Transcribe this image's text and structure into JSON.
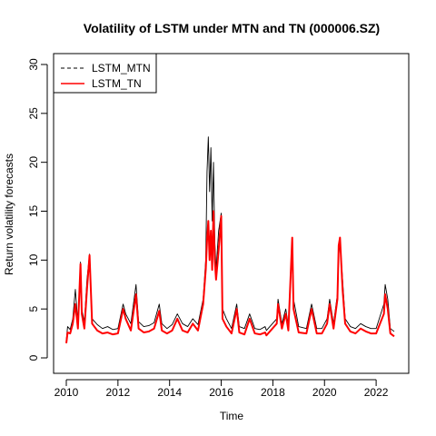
{
  "chart_data": {
    "type": "line",
    "title": "Volatility of LSTM under MTN and TN (000006.SZ)",
    "xlabel": "Time",
    "ylabel": "Return volatility forecasts",
    "xlim": [
      2010,
      2022.7
    ],
    "ylim": [
      0,
      30
    ],
    "x_ticks": [
      "2010",
      "2012",
      "2014",
      "2016",
      "2018",
      "2020",
      "2022"
    ],
    "y_ticks": [
      "0",
      "5",
      "10",
      "15",
      "20",
      "25",
      "30"
    ],
    "legend": {
      "position": "top-left"
    },
    "series": [
      {
        "name": "LSTM_MTN",
        "color": "#000000",
        "line_style": "dashed in legend, solid in plot",
        "values": [
          [
            2010.0,
            1.8
          ],
          [
            2010.05,
            3.2
          ],
          [
            2010.15,
            2.9
          ],
          [
            2010.25,
            4.0
          ],
          [
            2010.35,
            7.0
          ],
          [
            2010.45,
            3.5
          ],
          [
            2010.55,
            9.8
          ],
          [
            2010.6,
            5.0
          ],
          [
            2010.7,
            3.6
          ],
          [
            2010.8,
            8.0
          ],
          [
            2010.9,
            10.6
          ],
          [
            2011.0,
            4.0
          ],
          [
            2011.2,
            3.4
          ],
          [
            2011.4,
            3.0
          ],
          [
            2011.6,
            3.2
          ],
          [
            2011.8,
            2.9
          ],
          [
            2012.0,
            3.0
          ],
          [
            2012.2,
            5.5
          ],
          [
            2012.3,
            4.5
          ],
          [
            2012.5,
            3.5
          ],
          [
            2012.7,
            7.5
          ],
          [
            2012.8,
            3.7
          ],
          [
            2013.0,
            3.2
          ],
          [
            2013.2,
            3.3
          ],
          [
            2013.4,
            3.6
          ],
          [
            2013.6,
            5.5
          ],
          [
            2013.7,
            3.5
          ],
          [
            2013.9,
            3.0
          ],
          [
            2014.1,
            3.4
          ],
          [
            2014.3,
            4.5
          ],
          [
            2014.5,
            3.5
          ],
          [
            2014.7,
            3.2
          ],
          [
            2014.9,
            4.0
          ],
          [
            2015.1,
            3.4
          ],
          [
            2015.3,
            6.0
          ],
          [
            2015.4,
            10.0
          ],
          [
            2015.45,
            19.0
          ],
          [
            2015.5,
            22.6
          ],
          [
            2015.55,
            17.0
          ],
          [
            2015.6,
            21.5
          ],
          [
            2015.65,
            14.0
          ],
          [
            2015.7,
            20.0
          ],
          [
            2015.75,
            12.0
          ],
          [
            2015.8,
            9.0
          ],
          [
            2015.9,
            13.0
          ],
          [
            2016.0,
            14.8
          ],
          [
            2016.05,
            5.0
          ],
          [
            2016.2,
            4.0
          ],
          [
            2016.4,
            3.0
          ],
          [
            2016.6,
            5.5
          ],
          [
            2016.7,
            3.2
          ],
          [
            2016.9,
            3.0
          ],
          [
            2017.1,
            4.5
          ],
          [
            2017.3,
            3.0
          ],
          [
            2017.5,
            2.9
          ],
          [
            2017.7,
            3.2
          ],
          [
            2017.75,
            2.8
          ],
          [
            2018.15,
            4.0
          ],
          [
            2018.2,
            6.0
          ],
          [
            2018.35,
            3.5
          ],
          [
            2018.5,
            5.0
          ],
          [
            2018.6,
            3.3
          ],
          [
            2018.75,
            11.0
          ],
          [
            2018.8,
            6.0
          ],
          [
            2019.0,
            3.2
          ],
          [
            2019.3,
            3.0
          ],
          [
            2019.5,
            5.5
          ],
          [
            2019.7,
            3.0
          ],
          [
            2019.9,
            3.0
          ],
          [
            2020.1,
            4.0
          ],
          [
            2020.2,
            6.0
          ],
          [
            2020.35,
            3.5
          ],
          [
            2020.5,
            6.5
          ],
          [
            2020.55,
            10.5
          ],
          [
            2020.6,
            12.0
          ],
          [
            2020.7,
            8.0
          ],
          [
            2020.8,
            4.0
          ],
          [
            2021.0,
            3.2
          ],
          [
            2021.2,
            3.0
          ],
          [
            2021.4,
            3.5
          ],
          [
            2021.6,
            3.2
          ],
          [
            2021.8,
            3.0
          ],
          [
            2022.0,
            3.0
          ],
          [
            2022.3,
            5.5
          ],
          [
            2022.35,
            7.5
          ],
          [
            2022.45,
            6.0
          ],
          [
            2022.55,
            3.0
          ],
          [
            2022.7,
            2.7
          ]
        ]
      },
      {
        "name": "LSTM_TN",
        "color": "#ff0000",
        "line_style": "solid",
        "values": [
          [
            2010.0,
            1.5
          ],
          [
            2010.05,
            2.6
          ],
          [
            2010.15,
            2.5
          ],
          [
            2010.25,
            3.5
          ],
          [
            2010.35,
            5.5
          ],
          [
            2010.45,
            3.0
          ],
          [
            2010.55,
            9.6
          ],
          [
            2010.6,
            4.5
          ],
          [
            2010.7,
            3.0
          ],
          [
            2010.8,
            7.0
          ],
          [
            2010.9,
            10.5
          ],
          [
            2011.0,
            3.5
          ],
          [
            2011.2,
            2.8
          ],
          [
            2011.4,
            2.5
          ],
          [
            2011.6,
            2.6
          ],
          [
            2011.8,
            2.4
          ],
          [
            2012.0,
            2.5
          ],
          [
            2012.2,
            5.0
          ],
          [
            2012.3,
            4.0
          ],
          [
            2012.5,
            2.8
          ],
          [
            2012.7,
            6.5
          ],
          [
            2012.8,
            3.0
          ],
          [
            2013.0,
            2.6
          ],
          [
            2013.2,
            2.7
          ],
          [
            2013.4,
            3.0
          ],
          [
            2013.6,
            4.8
          ],
          [
            2013.7,
            2.8
          ],
          [
            2013.9,
            2.5
          ],
          [
            2014.1,
            2.8
          ],
          [
            2014.3,
            4.0
          ],
          [
            2014.5,
            2.8
          ],
          [
            2014.7,
            2.6
          ],
          [
            2014.9,
            3.5
          ],
          [
            2015.1,
            2.8
          ],
          [
            2015.3,
            5.5
          ],
          [
            2015.4,
            9.0
          ],
          [
            2015.45,
            12.0
          ],
          [
            2015.5,
            14.0
          ],
          [
            2015.55,
            10.0
          ],
          [
            2015.6,
            13.0
          ],
          [
            2015.65,
            9.0
          ],
          [
            2015.7,
            15.0
          ],
          [
            2015.75,
            10.0
          ],
          [
            2015.8,
            8.0
          ],
          [
            2015.9,
            11.0
          ],
          [
            2016.0,
            14.5
          ],
          [
            2016.05,
            4.0
          ],
          [
            2016.2,
            3.2
          ],
          [
            2016.4,
            2.5
          ],
          [
            2016.6,
            5.0
          ],
          [
            2016.7,
            2.6
          ],
          [
            2016.9,
            2.4
          ],
          [
            2017.1,
            4.0
          ],
          [
            2017.3,
            2.5
          ],
          [
            2017.5,
            2.4
          ],
          [
            2017.7,
            2.6
          ],
          [
            2017.75,
            2.3
          ],
          [
            2018.15,
            3.5
          ],
          [
            2018.2,
            5.5
          ],
          [
            2018.35,
            3.0
          ],
          [
            2018.5,
            4.5
          ],
          [
            2018.6,
            2.8
          ],
          [
            2018.75,
            12.3
          ],
          [
            2018.8,
            5.0
          ],
          [
            2019.0,
            2.6
          ],
          [
            2019.3,
            2.5
          ],
          [
            2019.5,
            5.0
          ],
          [
            2019.7,
            2.5
          ],
          [
            2019.9,
            2.5
          ],
          [
            2020.1,
            3.5
          ],
          [
            2020.2,
            5.5
          ],
          [
            2020.35,
            3.0
          ],
          [
            2020.5,
            6.0
          ],
          [
            2020.55,
            11.5
          ],
          [
            2020.6,
            12.3
          ],
          [
            2020.7,
            7.0
          ],
          [
            2020.8,
            3.5
          ],
          [
            2021.0,
            2.7
          ],
          [
            2021.2,
            2.5
          ],
          [
            2021.4,
            3.0
          ],
          [
            2021.6,
            2.7
          ],
          [
            2021.8,
            2.5
          ],
          [
            2022.0,
            2.5
          ],
          [
            2022.3,
            4.5
          ],
          [
            2022.35,
            6.5
          ],
          [
            2022.45,
            5.0
          ],
          [
            2022.55,
            2.5
          ],
          [
            2022.7,
            2.2
          ]
        ]
      }
    ],
    "grid": false
  }
}
